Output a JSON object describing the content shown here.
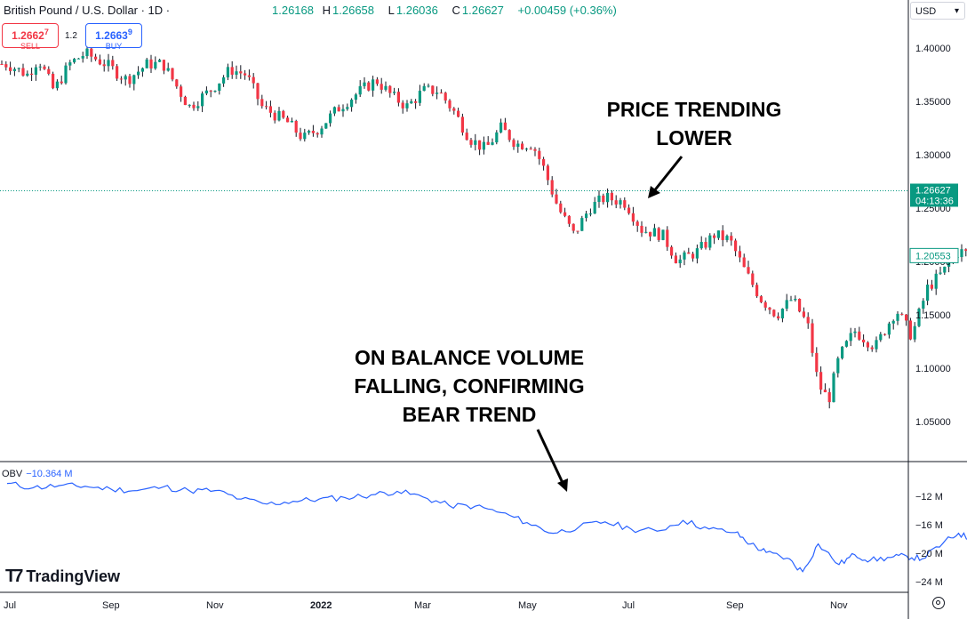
{
  "header": {
    "symbol": "British Pound / U.S. Dollar · 1D ·",
    "ohlc": {
      "o_label": "",
      "o": "1.26168",
      "h_label": "H",
      "h": "1.26658",
      "l_label": "L",
      "l": "1.26036",
      "c_label": "C",
      "c": "1.26627",
      "change": "+0.00459 (+0.36%)"
    }
  },
  "trade": {
    "sell_price": "1.2662",
    "sell_price_sup": "7",
    "sell_label": "SELL",
    "spread": "1.2",
    "buy_price": "1.2663",
    "buy_price_sup": "9",
    "buy_label": "BUY"
  },
  "currency_selector": "USD",
  "annotations": {
    "price": [
      "PRICE TRENDING",
      "LOWER"
    ],
    "obv": [
      "ON BALANCE VOLUME",
      "FALLING, CONFIRMING",
      "BEAR TREND"
    ]
  },
  "obv_legend": {
    "name": "OBV",
    "value": "−10.364 M"
  },
  "branding": {
    "name": "TradingView"
  },
  "colors": {
    "up": "#089981",
    "down": "#f23645",
    "obv_line": "#2962ff",
    "current_price_bg": "#089981",
    "last_price_border": "#089981"
  },
  "chart_data": [
    {
      "type": "candlestick",
      "title": "British Pound / U.S. Dollar · 1D",
      "x_ticks": [
        {
          "label": "Jul",
          "month": 0
        },
        {
          "label": "Sep",
          "month": 2
        },
        {
          "label": "Nov",
          "month": 4
        },
        {
          "label": "2022",
          "month": 6,
          "bold": true
        },
        {
          "label": "Mar",
          "month": 8
        },
        {
          "label": "May",
          "month": 10
        },
        {
          "label": "Jul",
          "month": 12
        },
        {
          "label": "Sep",
          "month": 14
        },
        {
          "label": "Nov",
          "month": 16
        }
      ],
      "y_ticks": [
        "1.40000",
        "1.35000",
        "1.30000",
        "1.25000",
        "1.20000",
        "1.15000",
        "1.10000",
        "1.05000"
      ],
      "ylim": [
        1.02,
        1.42
      ],
      "current_price": {
        "value": "1.26627",
        "countdown": "04:13:36"
      },
      "last_price_label": "1.20553",
      "close_path": [
        [
          0.0,
          1.385
        ],
        [
          0.4,
          1.375
        ],
        [
          0.6,
          1.39
        ],
        [
          0.9,
          1.36
        ],
        [
          1.2,
          1.385
        ],
        [
          1.5,
          1.395
        ],
        [
          1.9,
          1.385
        ],
        [
          2.3,
          1.37
        ],
        [
          2.7,
          1.385
        ],
        [
          3.0,
          1.385
        ],
        [
          3.5,
          1.345
        ],
        [
          3.9,
          1.36
        ],
        [
          4.3,
          1.38
        ],
        [
          4.6,
          1.375
        ],
        [
          4.9,
          1.345
        ],
        [
          5.4,
          1.33
        ],
        [
          5.7,
          1.315
        ],
        [
          6.0,
          1.325
        ],
        [
          6.4,
          1.345
        ],
        [
          6.8,
          1.36
        ],
        [
          7.1,
          1.37
        ],
        [
          7.4,
          1.355
        ],
        [
          7.7,
          1.345
        ],
        [
          8.0,
          1.36
        ],
        [
          8.3,
          1.36
        ],
        [
          8.6,
          1.34
        ],
        [
          8.9,
          1.315
        ],
        [
          9.2,
          1.305
        ],
        [
          9.5,
          1.325
        ],
        [
          9.8,
          1.31
        ],
        [
          10.1,
          1.31
        ],
        [
          10.3,
          1.29
        ],
        [
          10.6,
          1.25
        ],
        [
          10.9,
          1.225
        ],
        [
          11.2,
          1.25
        ],
        [
          11.5,
          1.26
        ],
        [
          11.9,
          1.255
        ],
        [
          12.2,
          1.23
        ],
        [
          12.6,
          1.225
        ],
        [
          12.9,
          1.2
        ],
        [
          13.3,
          1.21
        ],
        [
          13.6,
          1.225
        ],
        [
          13.9,
          1.22
        ],
        [
          14.2,
          1.19
        ],
        [
          14.5,
          1.165
        ],
        [
          14.8,
          1.15
        ],
        [
          15.1,
          1.165
        ],
        [
          15.4,
          1.14
        ],
        [
          15.6,
          1.085
        ],
        [
          15.8,
          1.07
        ],
        [
          16.0,
          1.11
        ],
        [
          16.3,
          1.135
        ],
        [
          16.7,
          1.12
        ],
        [
          17.1,
          1.155
        ],
        [
          17.4,
          1.13
        ],
        [
          17.7,
          1.175
        ],
        [
          18.0,
          1.19
        ],
        [
          18.3,
          1.21
        ],
        [
          18.6,
          1.205
        ]
      ]
    },
    {
      "type": "line",
      "series": [
        {
          "name": "OBV"
        }
      ],
      "y_unit": "M",
      "y_ticks": [
        "−12 M",
        "−16 M",
        "−20 M",
        "−24 M"
      ],
      "ylim": [
        -25,
        -8.5
      ],
      "x": [
        0.0,
        0.5,
        1.0,
        1.5,
        2.0,
        2.5,
        3.0,
        3.5,
        4.0,
        4.5,
        5.0,
        5.5,
        6.0,
        6.5,
        7.0,
        7.5,
        8.0,
        8.5,
        9.0,
        9.5,
        10.0,
        10.5,
        11.0,
        11.5,
        12.0,
        12.5,
        13.0,
        13.5,
        14.0,
        14.3,
        14.6,
        15.0,
        15.3,
        15.6,
        16.0,
        16.3,
        16.6,
        17.0,
        17.3,
        17.6,
        18.0,
        18.3,
        18.6
      ],
      "values": [
        -10.2,
        -10.8,
        -10.5,
        -10.6,
        -11.0,
        -11.2,
        -10.7,
        -11.2,
        -11.2,
        -12.4,
        -13.1,
        -12.7,
        -12.4,
        -12.2,
        -11.8,
        -11.3,
        -12.1,
        -13.3,
        -13.4,
        -14.3,
        -15.7,
        -17.2,
        -16.3,
        -15.6,
        -16.6,
        -16.9,
        -15.4,
        -16.6,
        -17.1,
        -18.7,
        -19.9,
        -20.7,
        -22.6,
        -18.7,
        -21.6,
        -20.2,
        -21.0,
        -20.6,
        -20.4,
        -20.8,
        -18.6,
        -17.2,
        -18.3
      ]
    }
  ]
}
